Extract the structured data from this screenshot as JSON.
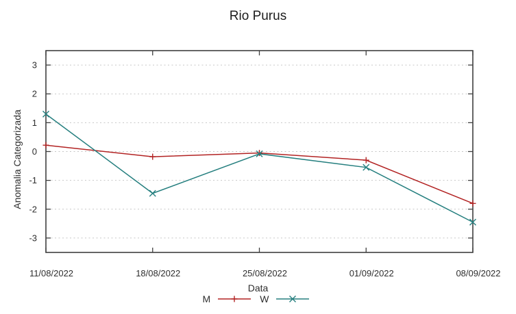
{
  "chart_data": {
    "type": "line",
    "title": "Rio Purus",
    "xlabel": "Data",
    "ylabel": "Anomalia Categorizada",
    "categories": [
      "11/08/2022",
      "18/08/2022",
      "25/08/2022",
      "01/09/2022",
      "08/09/2022"
    ],
    "series": [
      {
        "name": "M",
        "color": "#b22222",
        "marker": "plus",
        "values": [
          0.22,
          -0.18,
          -0.05,
          -0.3,
          -1.8
        ]
      },
      {
        "name": "W",
        "color": "#257f7f",
        "marker": "cross",
        "values": [
          1.3,
          -1.45,
          -0.08,
          -0.55,
          -2.45
        ]
      }
    ],
    "ylim": [
      -3.5,
      3.5
    ],
    "yticks": [
      -3,
      -2,
      -1,
      0,
      1,
      2,
      3
    ],
    "grid": true,
    "grid_style": "dotted",
    "legend_position": "bottom-center",
    "colors": {
      "grid": "#c6c6c6",
      "border": "#3f3f3f",
      "text": "#2e2e2e"
    }
  }
}
